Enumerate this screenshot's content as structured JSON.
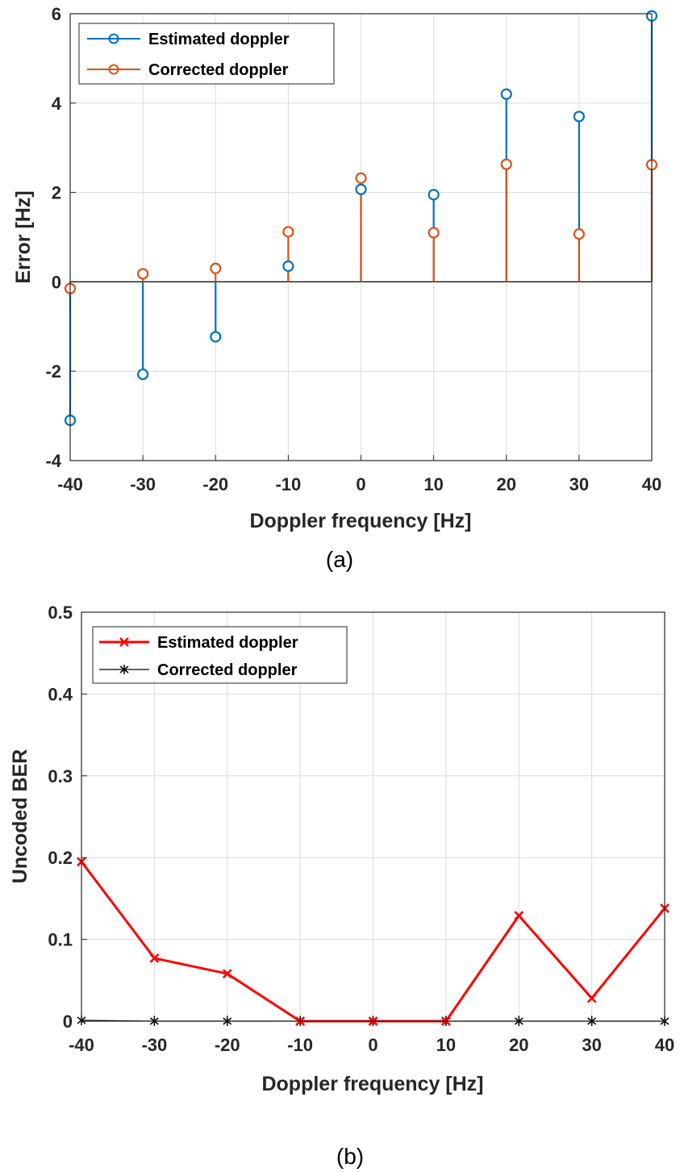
{
  "chart_data": [
    {
      "type": "stem",
      "caption": "(a)",
      "title": "",
      "xlabel": "Doppler frequency [Hz]",
      "ylabel": "Error [Hz]",
      "xlim": [
        -40,
        40
      ],
      "ylim": [
        -4,
        6
      ],
      "x": [
        -40,
        -30,
        -20,
        -10,
        0,
        10,
        20,
        30,
        40
      ],
      "xticks": [
        -40,
        -30,
        -20,
        -10,
        0,
        10,
        20,
        30,
        40
      ],
      "yticks": [
        -4,
        -2,
        0,
        2,
        4,
        6
      ],
      "xtick_labels": [
        "-40",
        "-30",
        "-20",
        "-10",
        "0",
        "10",
        "20",
        "30",
        "40"
      ],
      "ytick_labels": [
        "-4",
        "-2",
        "0",
        "2",
        "4",
        "6"
      ],
      "grid": true,
      "legend_position": "top-left",
      "series": [
        {
          "name": "Estimated doppler",
          "color": "#0072BD",
          "marker": "circle",
          "values": [
            -3.1,
            -2.07,
            -1.23,
            0.35,
            2.07,
            1.95,
            4.2,
            3.7,
            5.95
          ]
        },
        {
          "name": "Corrected doppler",
          "color": "#D95319",
          "marker": "circle",
          "values": [
            -0.15,
            0.18,
            0.3,
            1.12,
            2.32,
            1.1,
            2.63,
            1.07,
            2.62
          ]
        }
      ]
    },
    {
      "type": "line",
      "caption": "(b)",
      "title": "",
      "xlabel": "Doppler frequency [Hz]",
      "ylabel": "Uncoded BER",
      "xlim": [
        -40,
        40
      ],
      "ylim": [
        0,
        0.5
      ],
      "x": [
        -40,
        -30,
        -20,
        -10,
        0,
        10,
        20,
        30,
        40
      ],
      "xticks": [
        -40,
        -30,
        -20,
        -10,
        0,
        10,
        20,
        30,
        40
      ],
      "yticks": [
        0,
        0.1,
        0.2,
        0.3,
        0.4,
        0.5
      ],
      "xtick_labels": [
        "-40",
        "-30",
        "-20",
        "-10",
        "0",
        "10",
        "20",
        "30",
        "40"
      ],
      "ytick_labels": [
        "0",
        "0.1",
        "0.2",
        "0.3",
        "0.4",
        "0.5"
      ],
      "grid": true,
      "legend_position": "top-left",
      "series": [
        {
          "name": "Estimated doppler",
          "color": "#FF0000",
          "marker": "x",
          "values": [
            0.195,
            0.077,
            0.058,
            0.0,
            0.0,
            0.0,
            0.129,
            0.028,
            0.138
          ]
        },
        {
          "name": "Corrected doppler",
          "color": "#000000",
          "marker": "star",
          "values": [
            0.001,
            0.0,
            0.0,
            0.0,
            0.0,
            0.0,
            0.0,
            0.0,
            0.0
          ]
        }
      ]
    }
  ]
}
